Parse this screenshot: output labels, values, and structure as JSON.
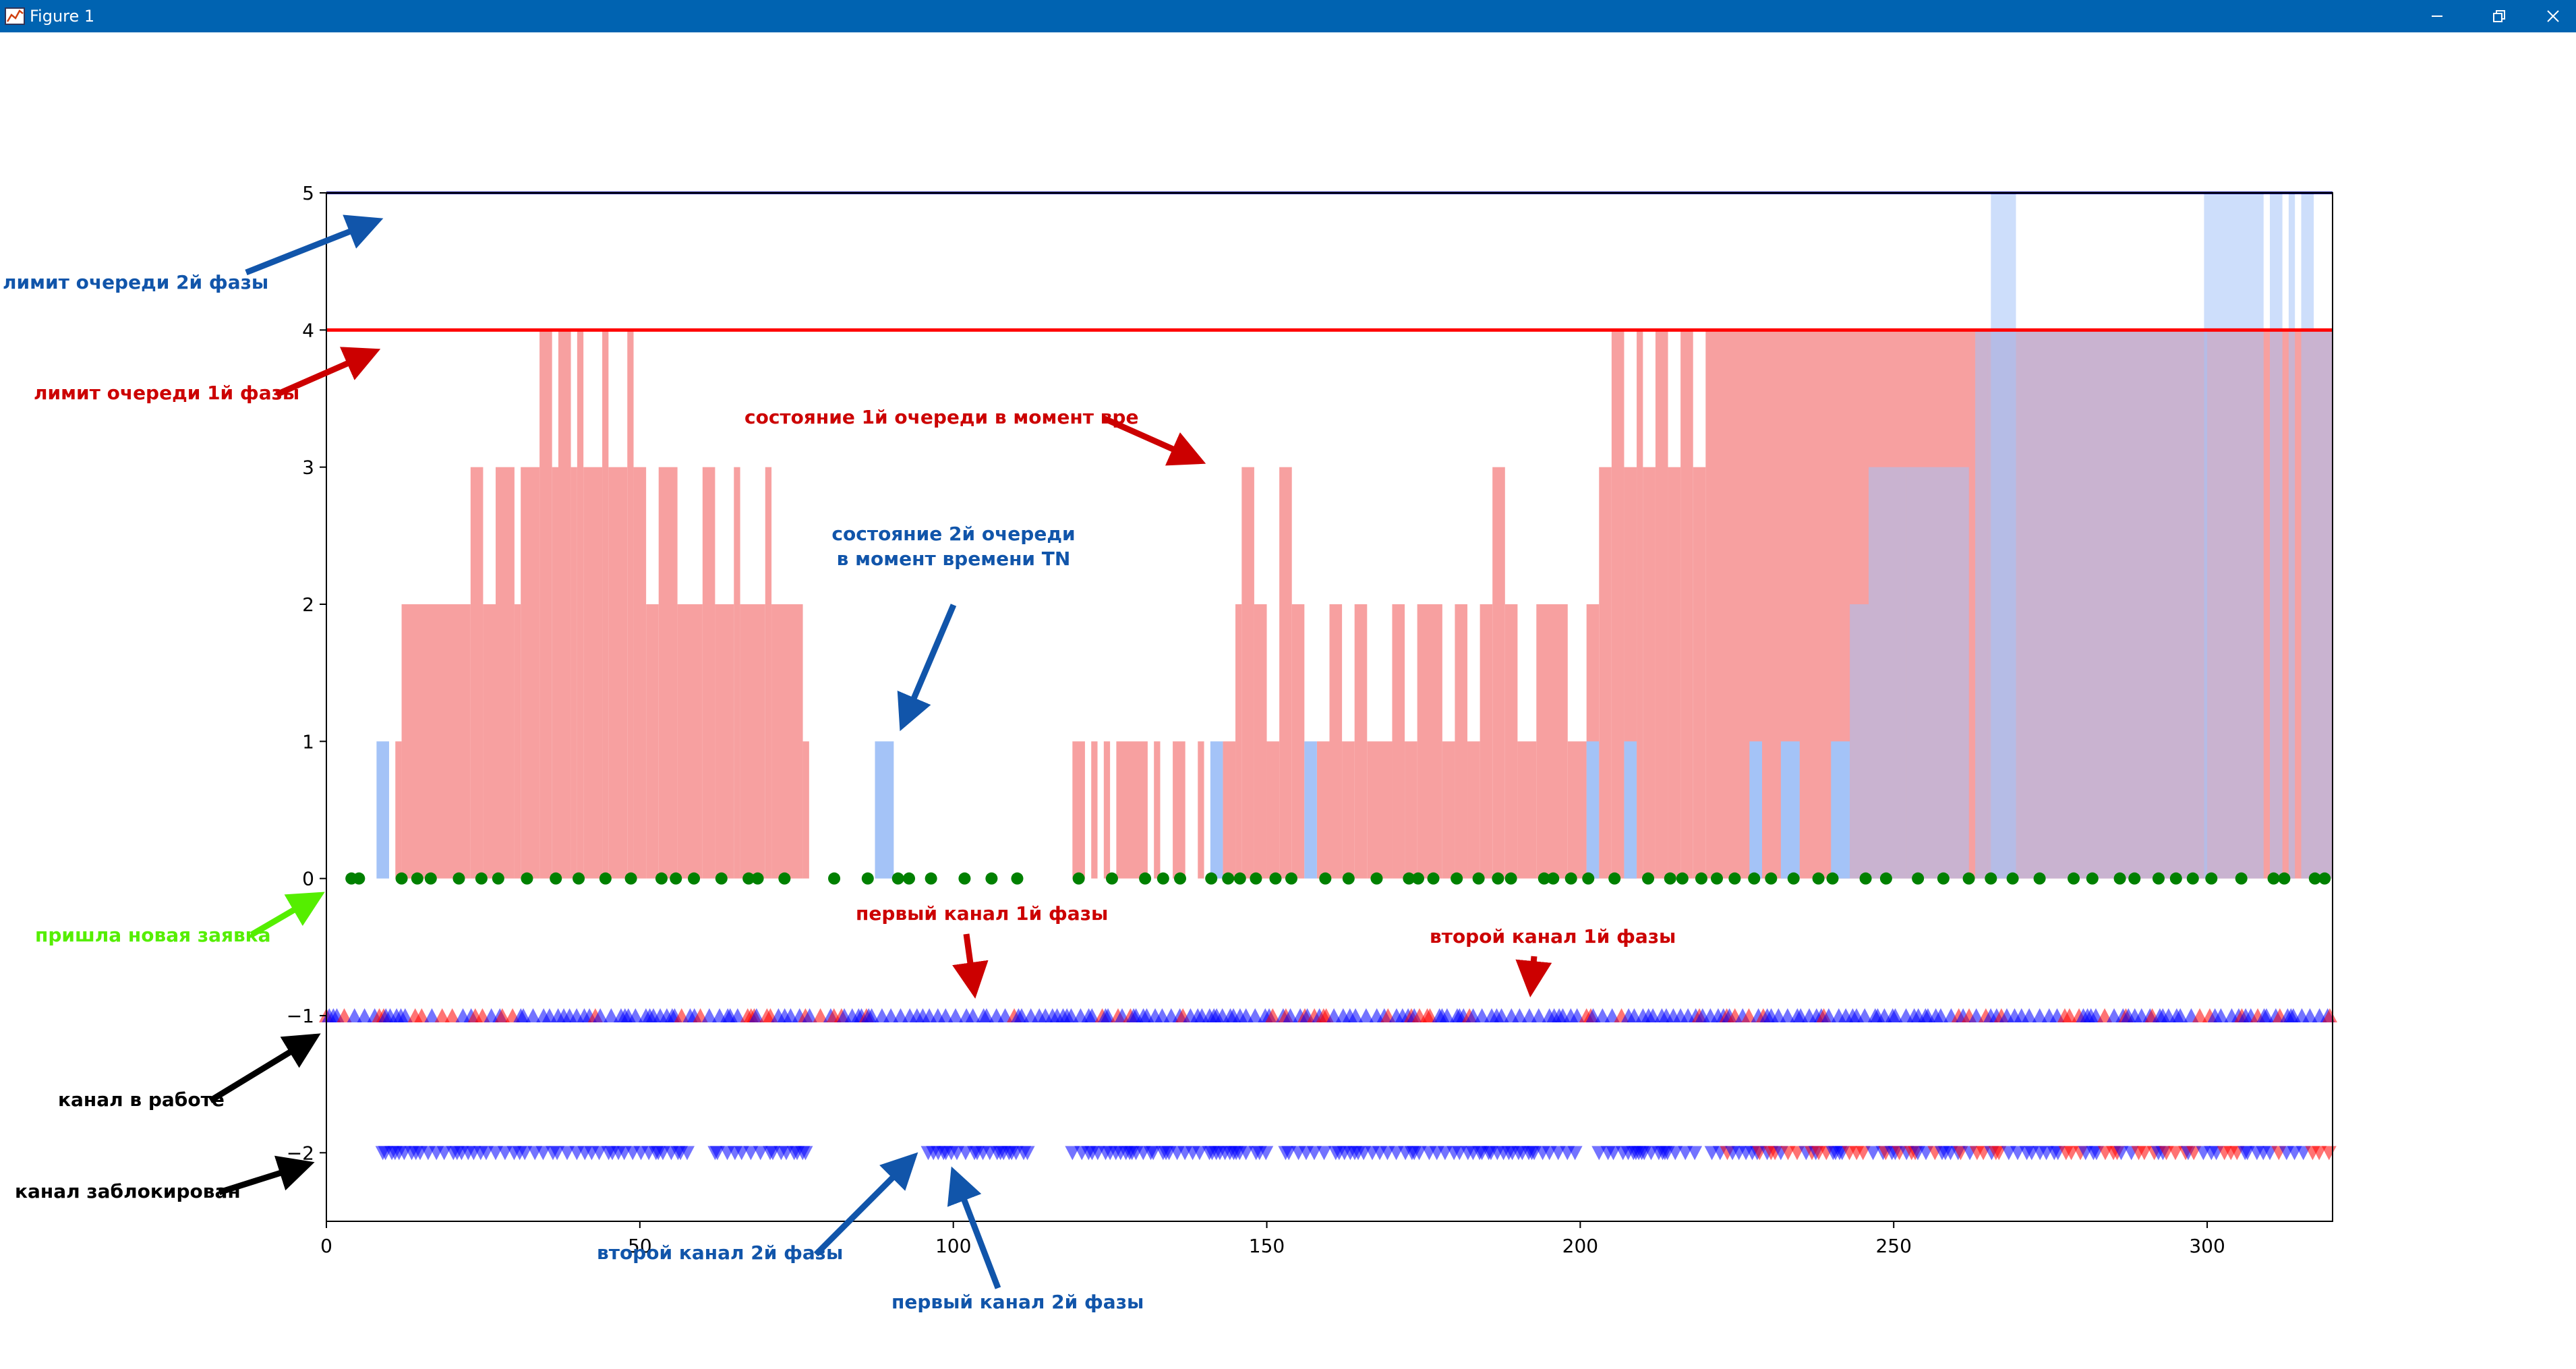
{
  "window": {
    "title": "Figure 1",
    "controls": [
      "minimize-icon",
      "restore-icon",
      "close-icon"
    ],
    "titlebar_color": "#0063b1"
  },
  "chart_data": {
    "type": "bar",
    "xlim": [
      0,
      320
    ],
    "ylim": [
      -2.5,
      5
    ],
    "grid": false,
    "xticks": [
      "0",
      "50",
      "100",
      "150",
      "200",
      "250",
      "300"
    ],
    "yticks": [
      "−2",
      "−1",
      "0",
      "1",
      "2",
      "3",
      "4",
      "5"
    ],
    "queue1_limit": 4,
    "queue2_limit": 5,
    "colors": {
      "queue1": "#f7a0a0",
      "queue2": "#a4c3f7",
      "queue1_limit_line": "#ff0000",
      "queue2_limit_line": "#000080",
      "arrivals": "#008000",
      "channel_work": "#0000ff",
      "channel_alt": "#ff0000",
      "blue_annotation": "#1155aa",
      "red_annotation": "#cc0000",
      "green_annotation": "#55ee00",
      "black_annotation": "#000000"
    },
    "queue1_state": [
      [
        11,
        12,
        1
      ],
      [
        12,
        23,
        2
      ],
      [
        23,
        25,
        3
      ],
      [
        25,
        27,
        2
      ],
      [
        27,
        30,
        3
      ],
      [
        30,
        31,
        2
      ],
      [
        31,
        34,
        3
      ],
      [
        34,
        36,
        4
      ],
      [
        36,
        37,
        3
      ],
      [
        37,
        39,
        4
      ],
      [
        39,
        40,
        3
      ],
      [
        40,
        41,
        4
      ],
      [
        41,
        44,
        3
      ],
      [
        44,
        45,
        4
      ],
      [
        45,
        48,
        3
      ],
      [
        48,
        49,
        4
      ],
      [
        49,
        51,
        3
      ],
      [
        51,
        53,
        2
      ],
      [
        53,
        56,
        3
      ],
      [
        56,
        60,
        2
      ],
      [
        60,
        62,
        3
      ],
      [
        62,
        65,
        2
      ],
      [
        65,
        66,
        3
      ],
      [
        66,
        70,
        2
      ],
      [
        70,
        71,
        3
      ],
      [
        71,
        76,
        2
      ],
      [
        76,
        77,
        1
      ],
      [
        119,
        121,
        1
      ],
      [
        122,
        123,
        1
      ],
      [
        124,
        125,
        1
      ],
      [
        126,
        128,
        1
      ],
      [
        128,
        131,
        1
      ],
      [
        132,
        133,
        1
      ],
      [
        135,
        137,
        1
      ],
      [
        139,
        140,
        1
      ],
      [
        143,
        145,
        1
      ],
      [
        145,
        146,
        2
      ],
      [
        146,
        148,
        3
      ],
      [
        148,
        150,
        2
      ],
      [
        150,
        152,
        1
      ],
      [
        152,
        154,
        3
      ],
      [
        154,
        156,
        2
      ],
      [
        158,
        160,
        1
      ],
      [
        160,
        162,
        2
      ],
      [
        162,
        164,
        1
      ],
      [
        164,
        166,
        2
      ],
      [
        166,
        170,
        1
      ],
      [
        170,
        172,
        2
      ],
      [
        172,
        174,
        1
      ],
      [
        174,
        178,
        2
      ],
      [
        178,
        180,
        1
      ],
      [
        180,
        182,
        2
      ],
      [
        182,
        184,
        1
      ],
      [
        184,
        186,
        2
      ],
      [
        186,
        188,
        3
      ],
      [
        188,
        190,
        2
      ],
      [
        190,
        193,
        1
      ],
      [
        193,
        198,
        2
      ],
      [
        198,
        201,
        1
      ],
      [
        201,
        203,
        2
      ],
      [
        203,
        205,
        3
      ],
      [
        205,
        207,
        4
      ],
      [
        207,
        209,
        3
      ],
      [
        209,
        210,
        4
      ],
      [
        210,
        212,
        3
      ],
      [
        212,
        214,
        4
      ],
      [
        214,
        216,
        3
      ],
      [
        216,
        218,
        4
      ],
      [
        218,
        220,
        3
      ],
      [
        220,
        320,
        4
      ]
    ],
    "queue2_state": [
      [
        8,
        10,
        1
      ],
      [
        87.5,
        90.5,
        1
      ],
      [
        141,
        143,
        1
      ],
      [
        156,
        158,
        1
      ],
      [
        201,
        203,
        1
      ],
      [
        207,
        209,
        1
      ],
      [
        227,
        229,
        1
      ],
      [
        232,
        235,
        1
      ],
      [
        240,
        243,
        1
      ],
      [
        243,
        246,
        2
      ],
      [
        246,
        252,
        3
      ],
      [
        252,
        262,
        3
      ],
      [
        265.5,
        269.5,
        5
      ],
      [
        263,
        265,
        4
      ],
      [
        265,
        300,
        4
      ],
      [
        299.5,
        309,
        5
      ],
      [
        310,
        312,
        5
      ],
      [
        313,
        314,
        5
      ],
      [
        315,
        317,
        5
      ],
      [
        317,
        320,
        4
      ]
    ],
    "arrivals_y": 0,
    "channel1_work_y": -1,
    "channel2_work_y": -2,
    "arrivals_ranges": [
      [
        4,
        9.5
      ],
      [
        12,
        76
      ],
      [
        81,
        113
      ],
      [
        120,
        320
      ]
    ],
    "channel1_ranges": [
      [
        0,
        320
      ]
    ],
    "channel2_ranges": [
      [
        9,
        26
      ],
      [
        27,
        59
      ],
      [
        62,
        77
      ],
      [
        96,
        113
      ],
      [
        119,
        150
      ],
      [
        153,
        160
      ],
      [
        161,
        200
      ],
      [
        203,
        219
      ],
      [
        221,
        320
      ]
    ],
    "channel2_red_range": [
      221,
      320
    ],
    "annotations": {
      "queue2_limit": "лимит очереди 2й фазы",
      "queue1_limit": "лимит очереди 1й фазы",
      "queue1_state": "состояние 1й очереди в момент вре",
      "queue2_state_line1": "состояние 2й очереди",
      "queue2_state_line2": "в момент времени TN",
      "new_request": "пришла новая заявка",
      "channel1_phase1": "первый канал 1й фазы",
      "channel2_phase1": "второй канал 1й фазы",
      "channel_working": "канал в работе",
      "channel_blocked": "канал заблокирован",
      "channel2_phase2": "второй канал 2й фазы",
      "channel1_phase2": "первый канал 2й фазы"
    }
  }
}
